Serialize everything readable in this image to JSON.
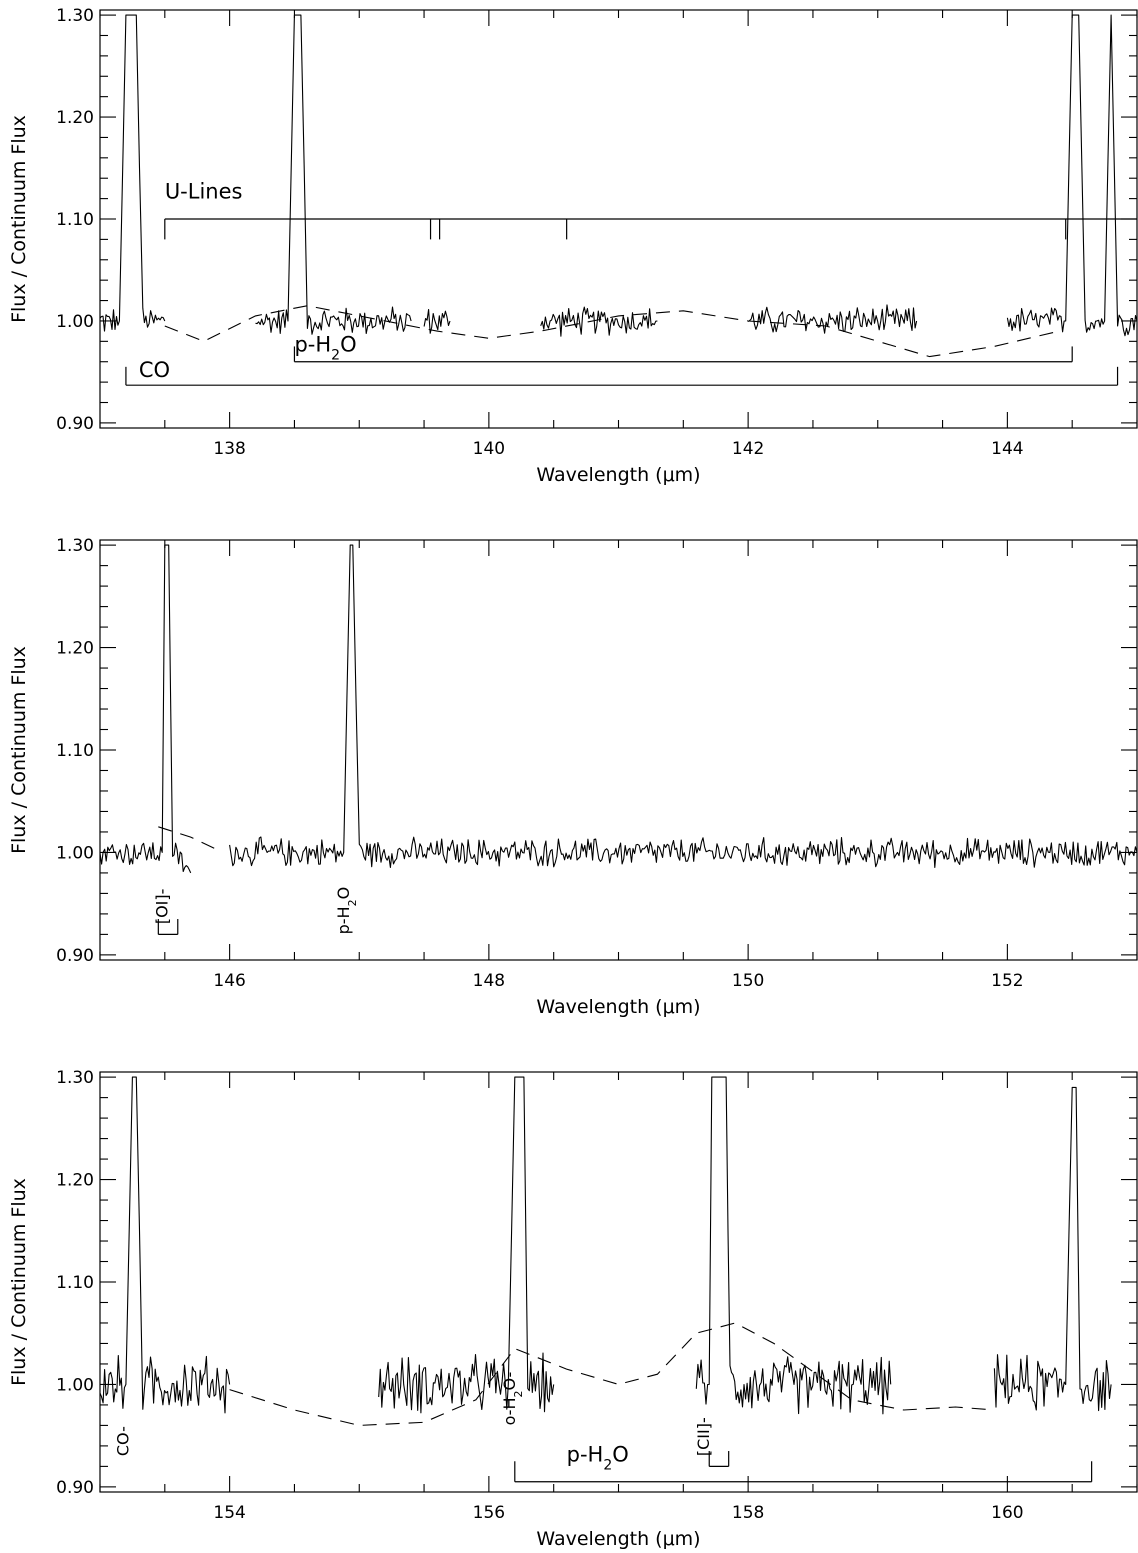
{
  "chart_data": [
    {
      "type": "line",
      "xlabel": "Wavelength (μm)",
      "ylabel": "Flux / Continuum Flux",
      "xlim": [
        137.0,
        145.0
      ],
      "ylim": [
        0.895,
        1.305
      ],
      "x_ticks": [
        "138",
        "140",
        "142",
        "144"
      ],
      "y_ticks": [
        "0.90",
        "1.00",
        "1.10",
        "1.20",
        "1.30"
      ],
      "series": [
        {
          "segments": [
            {
              "x": [
                137.0,
                137.15,
                137.2,
                137.25,
                137.28,
                137.33,
                137.5
              ],
              "y": [
                1.0,
                1.0,
                1.3,
                1.3,
                1.3,
                1.0,
                1.0
              ]
            },
            {
              "x": [
                138.2,
                138.45,
                138.5,
                138.55,
                138.6,
                139.4
              ],
              "y": [
                1.0,
                1.0,
                1.3,
                1.3,
                1.0,
                1.0
              ]
            },
            {
              "x": [
                139.5,
                139.7
              ],
              "y": [
                1.0,
                1.0
              ]
            },
            {
              "x": [
                140.4,
                141.3
              ],
              "y": [
                1.0,
                1.0
              ]
            },
            {
              "x": [
                142.0,
                143.3
              ],
              "y": [
                1.0,
                1.0
              ]
            },
            {
              "x": [
                144.0,
                144.45,
                144.5,
                144.55,
                144.6,
                144.75,
                144.8,
                144.85,
                145.0
              ],
              "y": [
                1.0,
                1.0,
                1.3,
                1.3,
                1.0,
                1.0,
                1.3,
                1.0,
                1.0
              ]
            }
          ]
        },
        {
          "style": "dashed",
          "x": [
            137.5,
            137.8,
            138.2,
            138.6,
            139.0,
            139.6,
            140.0,
            140.4,
            141.0,
            141.5,
            142.0,
            142.6,
            143.0,
            143.4,
            143.9,
            144.4
          ],
          "y": [
            0.995,
            0.98,
            1.005,
            1.015,
            1.005,
            0.99,
            0.983,
            0.99,
            1.005,
            1.01,
            1.0,
            0.995,
            0.98,
            0.965,
            0.975,
            0.99
          ]
        }
      ],
      "annotations": [
        {
          "text": "U-Lines",
          "x": 137.5,
          "y": 1.12
        },
        {
          "text": "p-H",
          "sub": "2",
          "tail": "O",
          "x": 138.5,
          "y": 0.97
        },
        {
          "text": "CO",
          "x": 137.3,
          "y": 0.945
        }
      ],
      "brackets": [
        {
          "label": "U-Lines",
          "x": [
            137.5,
            139.55,
            139.62,
            140.6,
            144.45
          ],
          "y_bar": 1.1,
          "y_end": 1.08,
          "extends": "right"
        },
        {
          "label": "p-H2O",
          "x": [
            138.5,
            144.5
          ],
          "y_bar": 0.96,
          "y_end": 0.975
        },
        {
          "label": "CO",
          "x": [
            137.2,
            144.85
          ],
          "y_bar": 0.937,
          "y_end": 0.955
        }
      ]
    },
    {
      "type": "line",
      "xlabel": "Wavelength (μm)",
      "ylabel": "Flux / Continuum Flux",
      "xlim": [
        145.0,
        153.0
      ],
      "ylim": [
        0.895,
        1.305
      ],
      "x_ticks": [
        "146",
        "148",
        "150",
        "152"
      ],
      "y_ticks": [
        "0.90",
        "1.00",
        "1.10",
        "1.20",
        "1.30"
      ],
      "series": [
        {
          "segments": [
            {
              "x": [
                145.0,
                145.48,
                145.5,
                145.53,
                145.56,
                145.7
              ],
              "y": [
                1.0,
                1.0,
                1.3,
                1.3,
                1.0,
                0.98
              ]
            },
            {
              "x": [
                146.0,
                146.88,
                146.93,
                146.95,
                147.0,
                153.0
              ],
              "y": [
                1.0,
                1.0,
                1.3,
                1.3,
                1.0,
                1.0
              ]
            }
          ]
        },
        {
          "style": "dashed",
          "x": [
            145.45,
            145.7,
            145.9
          ],
          "y": [
            1.025,
            1.015,
            1.003
          ]
        }
      ],
      "annotations": [
        {
          "text": "[OI]-",
          "x": 145.52,
          "y": 0.93,
          "rotated": true
        },
        {
          "text": "p-H",
          "sub": "2",
          "tail": "O",
          "x": 146.92,
          "y": 0.92,
          "rotated": true
        }
      ],
      "brackets": [
        {
          "label": "[OI]",
          "x": [
            145.45,
            145.6
          ],
          "y_bar": 0.92,
          "y_end": 0.935
        }
      ]
    },
    {
      "type": "line",
      "xlabel": "Wavelength (μm)",
      "ylabel": "Flux / Continuum Flux",
      "xlim": [
        153.0,
        161.0
      ],
      "ylim": [
        0.895,
        1.305
      ],
      "x_ticks": [
        "154",
        "156",
        "158",
        "160"
      ],
      "y_ticks": [
        "0.90",
        "1.00",
        "1.10",
        "1.20",
        "1.30"
      ],
      "series": [
        {
          "segments": [
            {
              "x": [
                153.0,
                153.2,
                153.25,
                153.28,
                153.33,
                154.0
              ],
              "y": [
                1.0,
                1.0,
                1.3,
                1.3,
                1.0,
                1.0
              ]
            },
            {
              "x": [
                155.15,
                156.15,
                156.2,
                156.23,
                156.27,
                156.3,
                156.5
              ],
              "y": [
                1.0,
                1.0,
                1.3,
                1.3,
                1.3,
                1.0,
                1.0
              ]
            },
            {
              "x": [
                157.6,
                157.7,
                157.72,
                157.78,
                157.83,
                157.86,
                159.1
              ],
              "y": [
                1.0,
                1.0,
                1.3,
                1.3,
                1.3,
                1.0,
                1.0
              ]
            },
            {
              "x": [
                159.9,
                160.45,
                160.5,
                160.53,
                160.56,
                160.8
              ],
              "y": [
                1.0,
                1.0,
                1.29,
                1.29,
                1.0,
                1.0
              ]
            }
          ]
        },
        {
          "style": "dashed",
          "x": [
            154.0,
            154.5,
            155.0,
            155.5,
            155.9,
            156.2,
            156.6,
            157.0,
            157.3,
            157.6,
            157.9,
            158.2,
            158.8,
            159.2,
            159.6,
            159.9
          ],
          "y": [
            0.995,
            0.975,
            0.96,
            0.963,
            0.985,
            1.035,
            1.015,
            1.0,
            1.01,
            1.05,
            1.06,
            1.04,
            0.985,
            0.975,
            0.978,
            0.975
          ]
        }
      ],
      "annotations": [
        {
          "text": "CO-",
          "x": 153.22,
          "y": 0.93,
          "rotated": true
        },
        {
          "text": "o-H",
          "sub": "2",
          "tail": "O-",
          "x": 156.2,
          "y": 0.96,
          "rotated": true
        },
        {
          "text": "p-H",
          "sub": "2",
          "tail": "O",
          "x": 156.6,
          "y": 0.925
        },
        {
          "text": "[CII]-",
          "x": 157.7,
          "y": 0.93,
          "rotated": true
        }
      ],
      "brackets": [
        {
          "label": "p-H2O",
          "x": [
            156.2,
            160.65
          ],
          "y_bar": 0.905,
          "y_end": 0.925
        },
        {
          "label": "[CII]",
          "x": [
            157.7,
            157.85
          ],
          "y_bar": 0.92,
          "y_end": 0.935
        }
      ]
    }
  ]
}
